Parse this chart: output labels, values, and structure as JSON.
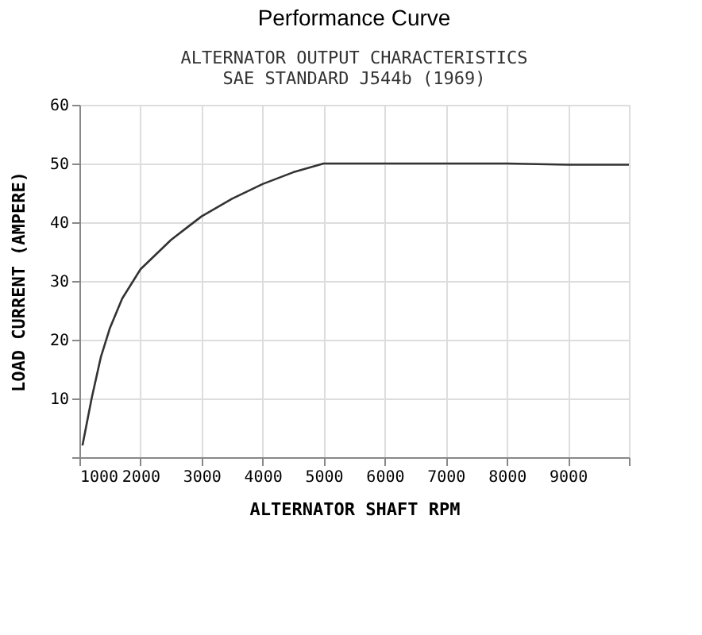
{
  "chart_data": {
    "type": "line",
    "title": "Performance Curve",
    "subtitle": "ALTERNATOR OUTPUT CHARACTERISTICS\nSAE STANDARD J544b (1969)",
    "xlabel": "ALTERNATOR SHAFT RPM",
    "ylabel": "LOAD CURRENT (AMPERE)",
    "x": [
      1050,
      1200,
      1350,
      1500,
      1700,
      2000,
      2250,
      2500,
      2750,
      3000,
      3500,
      4000,
      4500,
      5000,
      6000,
      7000,
      8000,
      9000,
      10000
    ],
    "series": [
      {
        "color": "#333333",
        "values": [
          2,
          10,
          17,
          22,
          27,
          32,
          34.5,
          37,
          39,
          41,
          44,
          46.5,
          48.5,
          50,
          50,
          50,
          50,
          49.8,
          49.8
        ]
      }
    ],
    "xlim": [
      1000,
      10000
    ],
    "xticks": [
      1000,
      2000,
      3000,
      4000,
      5000,
      6000,
      7000,
      8000,
      9000,
      {
        "value": 10000,
        "label": null
      }
    ],
    "ylim": [
      0,
      60
    ],
    "yticks": [
      {
        "value": 0,
        "label": null
      },
      10,
      20,
      30,
      40,
      50,
      60
    ],
    "grid": true,
    "marker": "none",
    "line_style": "solid",
    "legend": false
  }
}
